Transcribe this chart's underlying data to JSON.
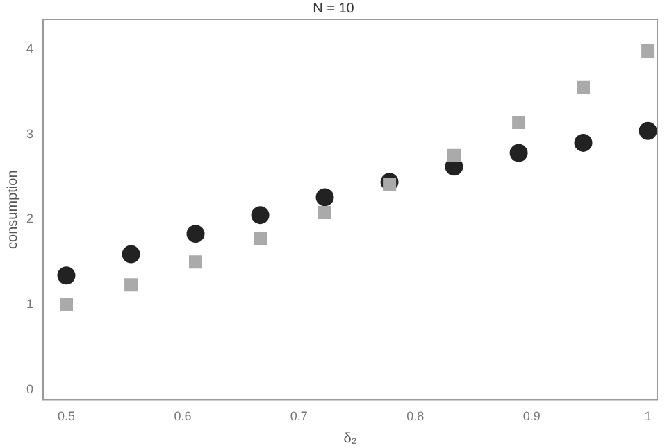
{
  "chart_data": {
    "type": "scatter",
    "title": "N = 10",
    "xlabel": "δ₂",
    "ylabel": "consumption",
    "x": [
      0.5,
      0.5556,
      0.6111,
      0.6667,
      0.7222,
      0.7778,
      0.8333,
      0.8889,
      0.9444,
      1.0
    ],
    "series": [
      {
        "color": "#222222",
        "marker": "circle",
        "values": [
          1.34,
          1.59,
          1.83,
          2.05,
          2.26,
          2.44,
          2.62,
          2.78,
          2.9,
          3.04
        ]
      },
      {
        "color": "#aaaaaa",
        "marker": "square",
        "values": [
          1.0,
          1.23,
          1.5,
          1.77,
          2.08,
          2.41,
          2.75,
          3.14,
          3.55,
          3.98
        ]
      }
    ],
    "xlim": [
      0.48,
      1.008
    ],
    "ylim": [
      -0.12,
      4.35
    ],
    "xticks": [
      0.5,
      0.6,
      0.7,
      0.8,
      0.9,
      1.0
    ],
    "yticks": [
      0,
      1,
      2,
      3,
      4
    ],
    "grid": false,
    "legend": false
  }
}
